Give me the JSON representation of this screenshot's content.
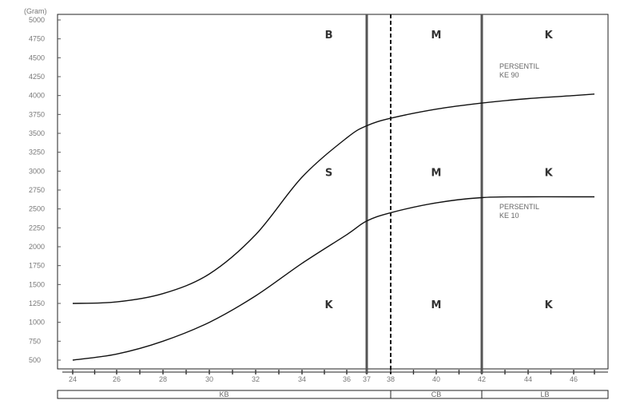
{
  "chart_data": {
    "type": "line",
    "ylabel": "(Gram)",
    "y_ticks": [
      500,
      750,
      1000,
      1250,
      1500,
      1750,
      2000,
      2250,
      2500,
      2750,
      3000,
      3250,
      3500,
      3750,
      4000,
      4250,
      4500,
      4750,
      5000
    ],
    "ylim": [
      500,
      5000
    ],
    "x_ticks": [
      24,
      26,
      28,
      30,
      32,
      34,
      36,
      37,
      38,
      40,
      42,
      44,
      46
    ],
    "xlim": [
      24,
      47
    ],
    "grid": false,
    "series": [
      {
        "label_lines": [
          "PERSENTIL",
          "KE      90"
        ],
        "x": [
          24,
          26,
          28,
          30,
          32,
          34,
          36,
          37,
          38,
          40,
          42,
          44,
          46,
          47
        ],
        "values": [
          1250,
          1270,
          1380,
          1640,
          2160,
          2920,
          3440,
          3600,
          3700,
          3820,
          3900,
          3960,
          4000,
          4020
        ]
      },
      {
        "label_lines": [
          "PERSENTIL",
          "KE      10"
        ],
        "x": [
          24,
          26,
          28,
          30,
          32,
          34,
          36,
          37,
          38,
          40,
          42,
          44,
          46,
          47
        ],
        "values": [
          500,
          580,
          750,
          1000,
          1350,
          1780,
          2160,
          2340,
          2450,
          2580,
          2650,
          2660,
          2660,
          2660
        ]
      }
    ],
    "vertical_lines": [
      {
        "x": 37,
        "style": "solid"
      },
      {
        "x": 38,
        "style": "dashed"
      },
      {
        "x": 42,
        "style": "solid"
      }
    ],
    "zone_letters": [
      {
        "text": "B",
        "x": 35.2,
        "y": 4810
      },
      {
        "text": "M",
        "x": 40.0,
        "y": 4810
      },
      {
        "text": "K",
        "x": 44.9,
        "y": 4810
      },
      {
        "text": "S",
        "x": 35.2,
        "y": 2990
      },
      {
        "text": "M",
        "x": 40.0,
        "y": 2990
      },
      {
        "text": "K",
        "x": 44.9,
        "y": 2990
      },
      {
        "text": "K",
        "x": 35.2,
        "y": 1240
      },
      {
        "text": "M",
        "x": 40.0,
        "y": 1240
      },
      {
        "text": "K",
        "x": 44.9,
        "y": 1240
      }
    ],
    "bands": [
      {
        "label": "KB",
        "from": 24,
        "to": 38
      },
      {
        "label": "CB",
        "from": 38,
        "to": 42
      },
      {
        "label": "LB",
        "from": 42,
        "to": 47
      }
    ]
  }
}
